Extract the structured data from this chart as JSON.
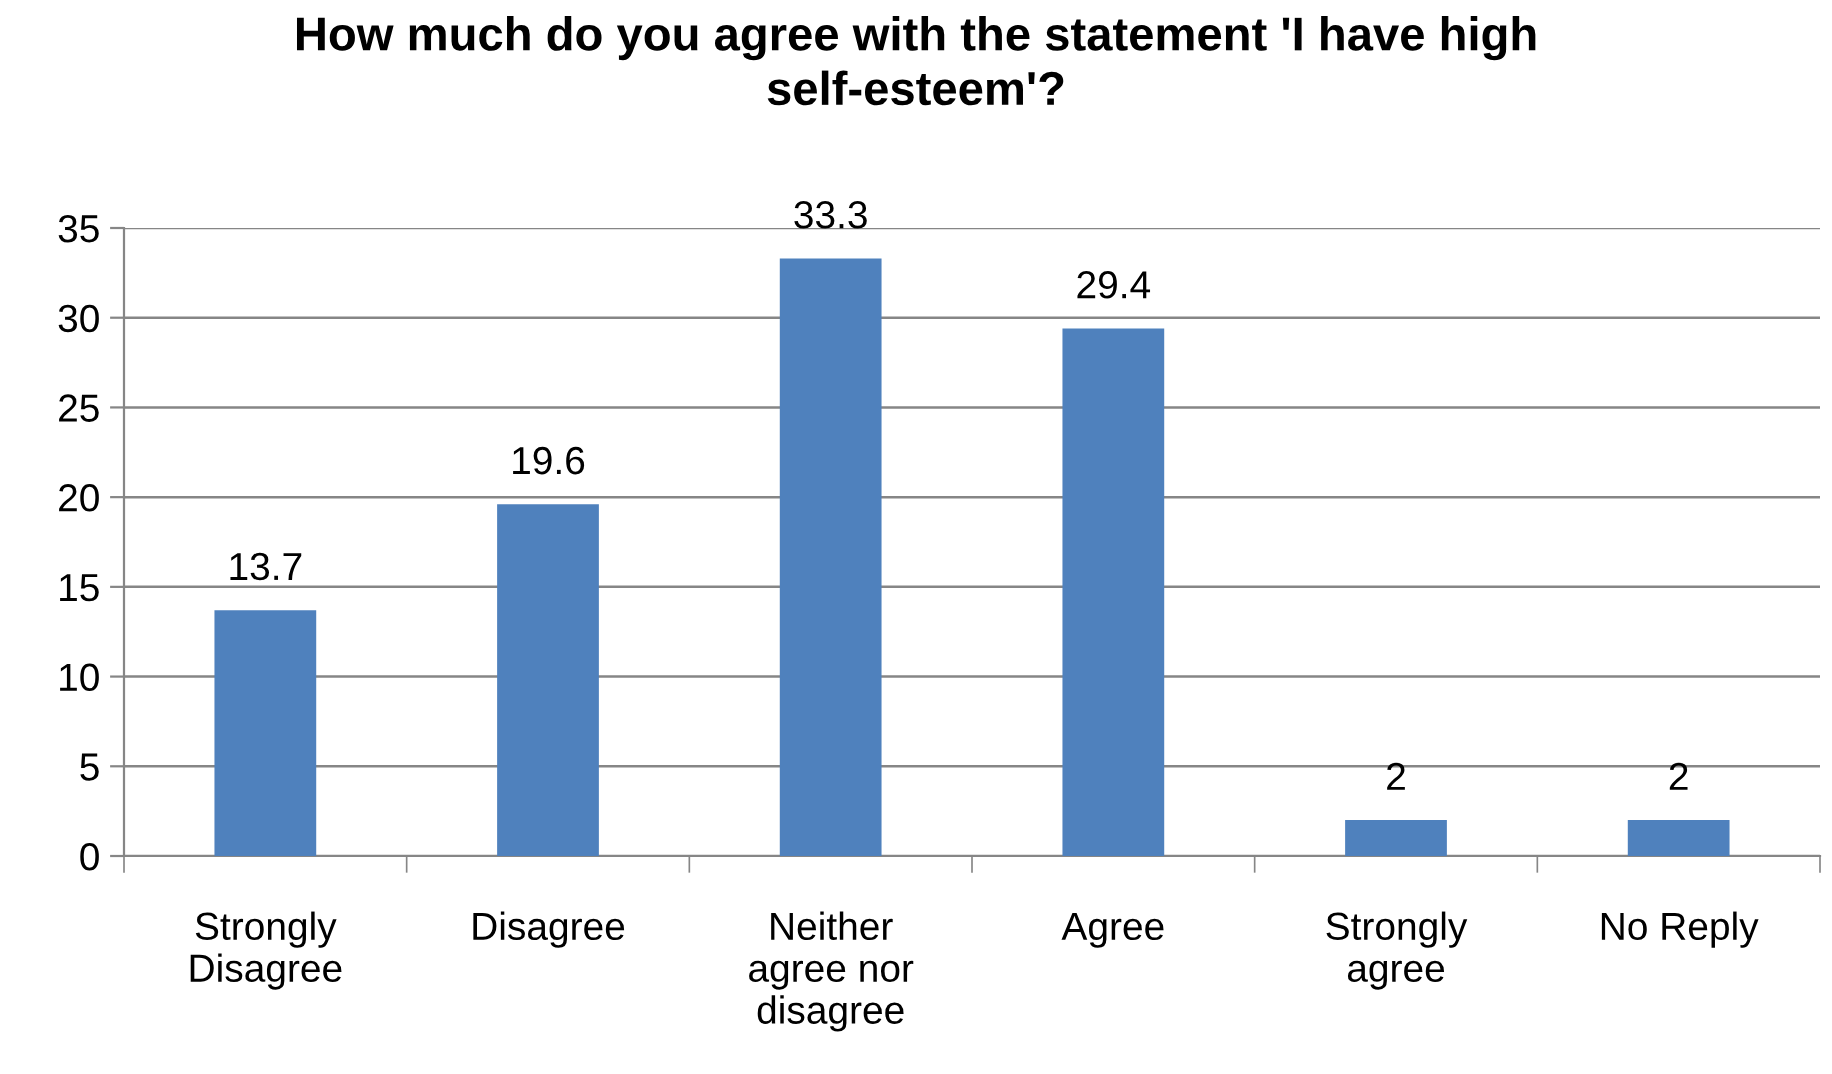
{
  "chart_data": {
    "type": "bar",
    "title": "How much do you agree with the statement 'I have high self-esteem'?",
    "categories": [
      "Strongly Disagree",
      "Disagree",
      "Neither agree nor disagree",
      "Agree",
      "Strongly agree",
      "No Reply"
    ],
    "values": [
      13.7,
      19.6,
      33.3,
      29.4,
      2,
      2
    ],
    "color": "#4f81bd",
    "ylim": [
      0,
      35
    ],
    "yticks": [
      0,
      5,
      10,
      15,
      20,
      25,
      30,
      35
    ],
    "grid": "y",
    "data_labels": true
  }
}
